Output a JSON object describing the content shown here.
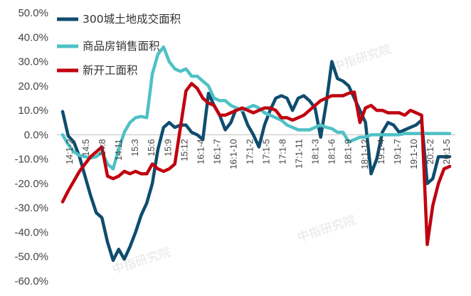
{
  "chart_data": {
    "type": "line",
    "title": "",
    "xlabel": "",
    "ylabel": "",
    "ylim": [
      -60,
      50
    ],
    "yticks": [
      "50.0%",
      "40.0%",
      "30.0%",
      "20.0%",
      "10.0%",
      "0.0%",
      "-10.0%",
      "-20.0%",
      "-30.0%",
      "-40.0%",
      "-50.0%",
      "-60.0%"
    ],
    "x_tick_labels": [
      "14:1-2",
      "14:5",
      "14:8",
      "14:11",
      "15:3",
      "15:6",
      "15:9",
      "15:12",
      "16:1-4",
      "16:1-7",
      "16:1-10",
      "17:1-2",
      "17:1-5",
      "17:1-8",
      "17:1-11",
      "18:1-3",
      "18:1-6",
      "18:1-9",
      "18:1-12",
      "19:1-4",
      "19:1-7",
      "19:1-10",
      "20:1-2",
      "20:1-5"
    ],
    "x": [
      "14:1-2",
      "14:3",
      "14:4",
      "14:5",
      "14:6",
      "14:7",
      "14:8",
      "14:9",
      "14:10",
      "14:11",
      "14:12",
      "15:1-2",
      "15:3",
      "15:4",
      "15:5",
      "15:6",
      "15:7",
      "15:8",
      "15:9",
      "15:10",
      "15:11",
      "15:12",
      "16:1-2",
      "16:1-3",
      "16:1-4",
      "16:1-5",
      "16:1-6",
      "16:1-7",
      "16:1-8",
      "16:1-9",
      "16:1-10",
      "16:1-11",
      "16:1-12",
      "17:1-2",
      "17:1-3",
      "17:1-4",
      "17:1-5",
      "17:1-6",
      "17:1-7",
      "17:1-8",
      "17:1-9",
      "17:1-10",
      "17:1-11",
      "17:1-12",
      "18:1-2",
      "18:1-3",
      "18:1-4",
      "18:1-5",
      "18:1-6",
      "18:1-7",
      "18:1-8",
      "18:1-9",
      "18:1-10",
      "18:1-11",
      "18:1-12",
      "19:1-2",
      "19:1-3",
      "19:1-4",
      "19:1-5",
      "19:1-6",
      "19:1-7",
      "19:1-8",
      "19:1-9",
      "19:1-10",
      "19:1-11",
      "19:1-12",
      "20:1-2",
      "20:1-3",
      "20:1-4",
      "20:1-5"
    ],
    "legend_position": "top-left",
    "series": [
      {
        "name": "300城土地成交面积",
        "color": "#0e4d6e",
        "values": [
          9.5,
          -0.5,
          -3,
          -9,
          -17,
          -25,
          -32,
          -34,
          -44,
          -51.5,
          -47,
          -51,
          -46,
          -40,
          -33,
          -28,
          -20,
          -6,
          3,
          5,
          3,
          4,
          4,
          1,
          0,
          -2,
          17,
          12,
          8,
          2,
          5,
          11,
          10,
          4,
          0,
          -5,
          4,
          10,
          15,
          16,
          15,
          10,
          15,
          16,
          14,
          11,
          -1,
          13,
          30,
          23,
          22,
          20,
          15,
          10,
          5,
          -16,
          -10,
          1,
          5,
          4,
          1,
          2,
          3,
          4,
          6,
          -20,
          -18,
          -9,
          -9,
          -9
        ]
      },
      {
        "name": "商品房销售面积",
        "color": "#4fc1c5",
        "values": [
          0,
          -4,
          -7,
          -8.5,
          -9,
          -9.5,
          -9,
          -7,
          -12,
          -14,
          -6,
          1,
          5,
          7,
          7.5,
          7,
          25,
          33,
          36,
          30,
          27,
          26,
          27,
          24,
          24,
          22,
          20,
          15,
          14,
          14,
          12,
          11,
          10,
          11,
          12,
          11,
          9,
          8,
          7,
          6,
          4,
          3,
          2,
          2,
          2,
          3,
          4,
          3,
          2.5,
          1,
          1,
          -3,
          -2,
          -1,
          -1,
          0,
          0,
          0,
          0,
          0,
          0,
          0.5,
          0.5,
          0.5,
          0.5,
          0.5,
          0.5,
          0.5,
          0.5,
          0.5
        ]
      },
      {
        "name": "新开工面积",
        "color": "#c0000f",
        "values": [
          -27.5,
          -23,
          -19,
          -15,
          -12,
          -9,
          -7,
          -5,
          -17,
          -18,
          -17,
          -15,
          -16,
          -15,
          -16,
          -16,
          -12,
          -14,
          -15,
          -14,
          -12,
          3,
          18,
          21,
          19,
          15,
          13,
          12,
          8,
          8,
          9,
          10,
          11,
          10,
          9,
          10,
          11,
          11,
          10,
          7,
          7,
          6,
          7,
          8,
          10,
          12,
          14,
          15,
          16,
          16,
          16,
          17,
          17.5,
          5,
          11,
          12,
          10,
          10,
          9,
          9,
          9,
          8,
          10,
          9,
          8,
          -45,
          -29,
          -20,
          -14,
          -13
        ]
      }
    ]
  },
  "legend": [
    {
      "label": "300城土地成交面积",
      "color": "#0e4d6e"
    },
    {
      "label": "商品房销售面积",
      "color": "#4fc1c5"
    },
    {
      "label": "新开工面积",
      "color": "#c0000f"
    }
  ],
  "watermark": "中指研究院"
}
